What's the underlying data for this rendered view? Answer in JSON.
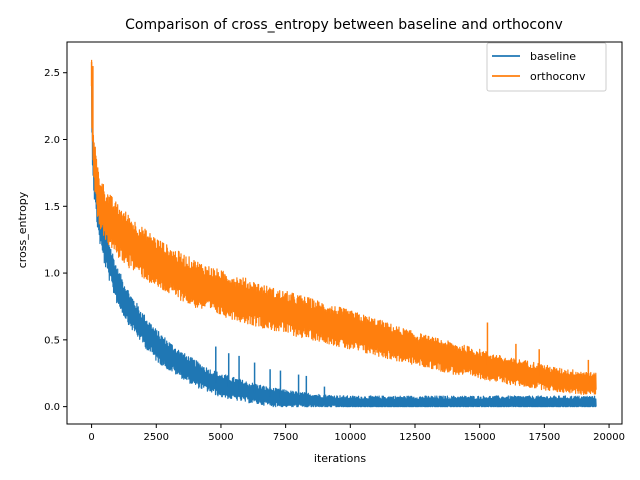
{
  "chart_data": {
    "type": "line",
    "title": "Comparison of cross_entropy between baseline and orthoconv",
    "xlabel": "iterations",
    "ylabel": "cross_entropy",
    "xlim": [
      -950,
      20500
    ],
    "ylim": [
      -0.13,
      2.73
    ],
    "xticks": [
      0,
      2500,
      5000,
      7500,
      10000,
      12500,
      15000,
      17500,
      20000
    ],
    "yticks": [
      0.0,
      0.5,
      1.0,
      1.5,
      2.0,
      2.5
    ],
    "xtick_labels": [
      "0",
      "2500",
      "5000",
      "7500",
      "10000",
      "12500",
      "15000",
      "17500",
      "20000"
    ],
    "ytick_labels": [
      "0.0",
      "0.5",
      "1.0",
      "1.5",
      "2.0",
      "2.5"
    ],
    "grid": false,
    "legend_position": "top-right",
    "series": [
      {
        "name": "baseline",
        "color": "#1f77b4",
        "x": [
          0,
          20,
          50,
          100,
          200,
          300,
          500,
          750,
          1000,
          1500,
          2000,
          2500,
          3000,
          3500,
          4000,
          4500,
          5000,
          6000,
          7000,
          8000,
          9000,
          10000,
          11000,
          12000,
          13000,
          14000,
          15000,
          16000,
          17000,
          18000,
          19000,
          19500
        ],
        "y": [
          2.3,
          2.15,
          1.95,
          1.75,
          1.55,
          1.4,
          1.22,
          1.05,
          0.9,
          0.72,
          0.58,
          0.46,
          0.38,
          0.31,
          0.25,
          0.2,
          0.16,
          0.11,
          0.07,
          0.05,
          0.04,
          0.03,
          0.03,
          0.03,
          0.03,
          0.03,
          0.03,
          0.03,
          0.03,
          0.03,
          0.03,
          0.03
        ],
        "band": [
          0.25,
          0.25,
          0.22,
          0.2,
          0.18,
          0.17,
          0.16,
          0.15,
          0.14,
          0.13,
          0.12,
          0.12,
          0.11,
          0.1,
          0.1,
          0.09,
          0.09,
          0.08,
          0.07,
          0.06,
          0.05,
          0.05,
          0.05,
          0.05,
          0.05,
          0.05,
          0.05,
          0.05,
          0.05,
          0.05,
          0.05,
          0.05
        ],
        "spikes": [
          [
            4800,
            0.45
          ],
          [
            5300,
            0.4
          ],
          [
            5700,
            0.38
          ],
          [
            6300,
            0.33
          ],
          [
            6900,
            0.28
          ],
          [
            7300,
            0.27
          ],
          [
            8000,
            0.24
          ],
          [
            8300,
            0.23
          ],
          [
            9000,
            0.15
          ]
        ]
      },
      {
        "name": "orthoconv",
        "color": "#ff7f0e",
        "x": [
          0,
          20,
          50,
          100,
          200,
          300,
          500,
          750,
          1000,
          1500,
          2000,
          2500,
          3000,
          4000,
          5000,
          6000,
          7000,
          8000,
          9000,
          10000,
          11000,
          12000,
          13000,
          14000,
          15000,
          16000,
          17000,
          18000,
          19000,
          19500
        ],
        "y": [
          2.4,
          2.2,
          2.0,
          1.85,
          1.65,
          1.55,
          1.45,
          1.38,
          1.32,
          1.23,
          1.15,
          1.08,
          1.02,
          0.92,
          0.85,
          0.79,
          0.73,
          0.68,
          0.63,
          0.57,
          0.52,
          0.46,
          0.41,
          0.36,
          0.32,
          0.27,
          0.24,
          0.2,
          0.18,
          0.17
        ],
        "band": [
          0.2,
          0.2,
          0.2,
          0.2,
          0.2,
          0.2,
          0.2,
          0.2,
          0.2,
          0.2,
          0.19,
          0.19,
          0.18,
          0.18,
          0.17,
          0.17,
          0.16,
          0.16,
          0.15,
          0.15,
          0.14,
          0.13,
          0.12,
          0.12,
          0.11,
          0.1,
          0.1,
          0.09,
          0.09,
          0.08
        ],
        "spikes": [
          [
            0,
            2.58
          ],
          [
            50,
            2.55
          ],
          [
            15300,
            0.63
          ],
          [
            16400,
            0.47
          ],
          [
            17300,
            0.43
          ],
          [
            19200,
            0.35
          ]
        ]
      }
    ]
  }
}
